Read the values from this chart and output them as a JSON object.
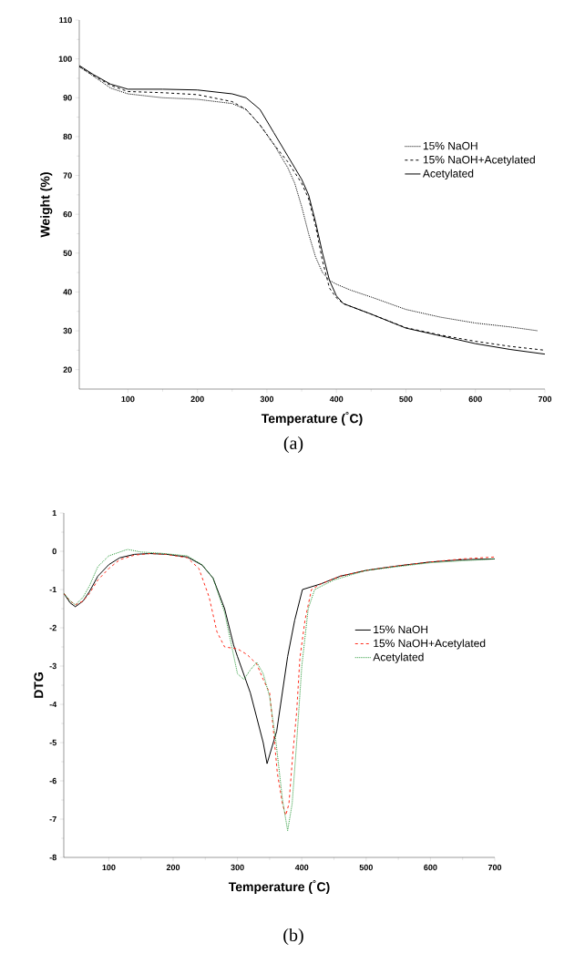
{
  "chart_data": [
    {
      "type": "line",
      "xlabel": "Temperature ($^{°}$C)",
      "ylabel": "Weight (%)",
      "annotations": [
        "(a)"
      ],
      "xlim": [
        30,
        700
      ],
      "ylim": [
        15,
        110
      ],
      "xticks": [
        100,
        200,
        300,
        400,
        500,
        600,
        700
      ],
      "yticks": [
        20,
        30,
        40,
        50,
        60,
        70,
        80,
        90,
        100,
        110
      ],
      "legend": "right",
      "grid": false,
      "series": [
        {
          "name": "15% NaOH",
          "color": "#000000",
          "line_style": "dotted",
          "x": [
            30,
            50,
            75,
            100,
            150,
            200,
            250,
            270,
            290,
            310,
            330,
            340,
            350,
            360,
            370,
            380,
            390,
            400,
            420,
            450,
            500,
            550,
            600,
            650,
            690
          ],
          "values": [
            98,
            95.6,
            92.5,
            91,
            90,
            89.6,
            88.5,
            87,
            83,
            78,
            72,
            68,
            62,
            55,
            49,
            45,
            43,
            42,
            40.5,
            38.7,
            35.5,
            33.5,
            32,
            31,
            30
          ]
        },
        {
          "name": "15% NaOH+Acetylated",
          "color": "#000000",
          "line_style": "dashed",
          "x": [
            30,
            50,
            75,
            100,
            150,
            200,
            250,
            270,
            290,
            310,
            330,
            350,
            360,
            370,
            380,
            390,
            400,
            410,
            450,
            500,
            550,
            600,
            650,
            700
          ],
          "values": [
            98,
            95.8,
            93.2,
            91.6,
            91.3,
            90.8,
            89,
            87,
            83,
            78,
            73.5,
            68,
            64,
            57,
            48,
            41,
            38.5,
            37,
            34.3,
            30.8,
            28.9,
            27.3,
            26,
            25
          ]
        },
        {
          "name": "Acetylated",
          "color": "#000000",
          "line_style": "solid",
          "x": [
            30,
            50,
            75,
            100,
            150,
            200,
            250,
            270,
            290,
            310,
            330,
            350,
            360,
            370,
            380,
            390,
            400,
            410,
            450,
            500,
            550,
            600,
            650,
            700
          ],
          "values": [
            98.3,
            96,
            93.5,
            92.2,
            92.2,
            92,
            91,
            90,
            87,
            81,
            75,
            69,
            65,
            58,
            50,
            43,
            39,
            37,
            34.3,
            30.7,
            28.7,
            26.7,
            25.2,
            24
          ]
        }
      ]
    },
    {
      "type": "line",
      "xlabel": "Temperature ($^{°}$C)",
      "ylabel": "DTG",
      "annotations": [
        "(b)"
      ],
      "xlim": [
        30,
        700
      ],
      "ylim": [
        -8,
        1
      ],
      "xticks": [
        100,
        200,
        300,
        400,
        500,
        600,
        700
      ],
      "yticks": [
        -8,
        -7,
        -6,
        -5,
        -4,
        -3,
        -2,
        -1,
        0,
        1
      ],
      "legend": "right",
      "grid": false,
      "series": [
        {
          "name": "15% NaOH",
          "color": "#000000",
          "line_style": "solid",
          "x": [
            30,
            40,
            48,
            60,
            70,
            83,
            100,
            117,
            140,
            164,
            190,
            222,
            245,
            262,
            280,
            294,
            300,
            320,
            340,
            346,
            361,
            378,
            389,
            401,
            430,
            460,
            500,
            550,
            600,
            650,
            700
          ],
          "values": [
            -1.1,
            -1.35,
            -1.45,
            -1.3,
            -1.05,
            -0.65,
            -0.35,
            -0.17,
            -0.08,
            -0.06,
            -0.08,
            -0.15,
            -0.36,
            -0.7,
            -1.5,
            -2.45,
            -2.75,
            -3.7,
            -5.0,
            -5.55,
            -4.7,
            -2.75,
            -1.8,
            -1.0,
            -0.85,
            -0.65,
            -0.5,
            -0.38,
            -0.28,
            -0.22,
            -0.2
          ]
        },
        {
          "name": "15% NaOH+Acetylated",
          "color": "#ff2a1a",
          "line_style": "dashed",
          "x": [
            30,
            40,
            48,
            60,
            70,
            83,
            100,
            117,
            140,
            164,
            190,
            222,
            240,
            256,
            268,
            280,
            300,
            315,
            330,
            340,
            350,
            356,
            362,
            370,
            375,
            380,
            386,
            392,
            397,
            405,
            415,
            430,
            460,
            500,
            550,
            600,
            650,
            700
          ],
          "values": [
            -1.1,
            -1.3,
            -1.4,
            -1.3,
            -1.1,
            -0.75,
            -0.45,
            -0.22,
            -0.1,
            -0.06,
            -0.08,
            -0.17,
            -0.45,
            -1.2,
            -2.1,
            -2.5,
            -2.55,
            -2.7,
            -2.95,
            -3.35,
            -3.7,
            -4.7,
            -5.8,
            -6.6,
            -6.9,
            -6.6,
            -5.3,
            -4.2,
            -2.8,
            -1.8,
            -1.0,
            -0.85,
            -0.65,
            -0.5,
            -0.38,
            -0.28,
            -0.2,
            -0.15
          ]
        },
        {
          "name": "Acetylated",
          "color": "#2a9a3a",
          "line_style": "dotted",
          "x": [
            30,
            40,
            48,
            60,
            70,
            83,
            100,
            129,
            150,
            180,
            222,
            245,
            262,
            280,
            300,
            310,
            320,
            330,
            340,
            350,
            360,
            370,
            378,
            385,
            392,
            400,
            410,
            420,
            450,
            500,
            550,
            600,
            650,
            700
          ],
          "values": [
            -1.1,
            -1.3,
            -1.4,
            -1.2,
            -0.9,
            -0.4,
            -0.12,
            0.05,
            -0.02,
            -0.05,
            -0.12,
            -0.35,
            -0.7,
            -1.6,
            -3.2,
            -3.35,
            -3.1,
            -2.9,
            -3.2,
            -3.8,
            -5.0,
            -6.5,
            -7.3,
            -6.6,
            -5.0,
            -3.0,
            -1.5,
            -1.0,
            -0.75,
            -0.5,
            -0.4,
            -0.3,
            -0.25,
            -0.2
          ]
        }
      ]
    }
  ]
}
